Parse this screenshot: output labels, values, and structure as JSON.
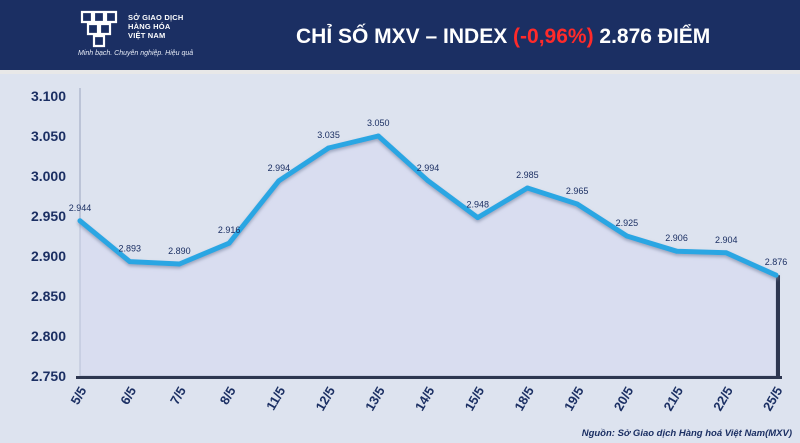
{
  "header": {
    "org_name": "SỞ GIAO DỊCH\nHÀNG HÓA\nVIỆT NAM",
    "tagline": "Minh bạch. Chuyên nghiệp. Hiệu quả",
    "title_prefix": "CHỈ SỐ MXV – INDEX ",
    "title_change": "(-0,96%)",
    "title_suffix": " 2.876 ĐIỂM"
  },
  "source": "Nguồn: Sở Giao dịch Hàng hoá Việt Nam(MXV)",
  "colors": {
    "header_bg": "#1b2f63",
    "line": "#2aa6e3",
    "area_fill": "#d9ddf0",
    "negative": "#ff2a2a"
  },
  "chart_data": {
    "type": "area",
    "categories": [
      "5/5",
      "6/5",
      "7/5",
      "8/5",
      "11/5",
      "12/5",
      "13/5",
      "14/5",
      "15/5",
      "18/5",
      "19/5",
      "20/5",
      "21/5",
      "22/5",
      "25/5"
    ],
    "values": [
      2944,
      2893,
      2890,
      2916,
      2994,
      3035,
      3050,
      2994,
      2948,
      2985,
      2965,
      2925,
      2906,
      2904,
      2876
    ],
    "data_labels": [
      "2.944",
      "2.893",
      "2.890",
      "2.916",
      "2.994",
      "3.035",
      "3.050",
      "2.994",
      "2.948",
      "2.985",
      "2.965",
      "2.925",
      "2.906",
      "2.904",
      "2.876"
    ],
    "ylim": [
      2750,
      3100
    ],
    "yticks": [
      3100,
      3050,
      3000,
      2950,
      2900,
      2850,
      2800,
      2750
    ],
    "ytick_labels": [
      "3.100",
      "3.050",
      "3.000",
      "2.950",
      "2.900",
      "2.850",
      "2.800",
      "2.750"
    ],
    "grid": "vertical drop lines",
    "legend": "none"
  }
}
